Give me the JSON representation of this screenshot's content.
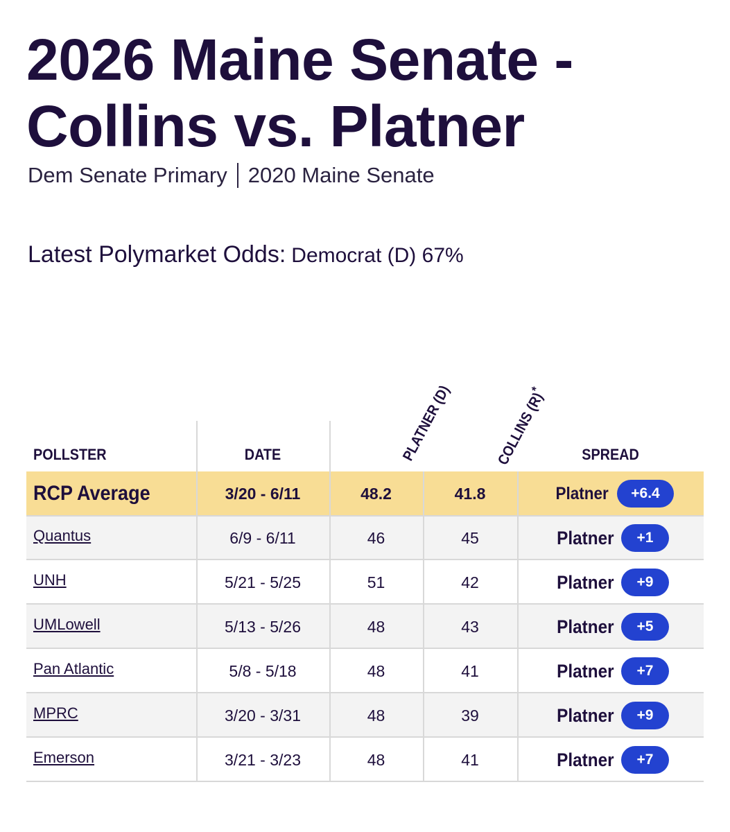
{
  "header": {
    "title": "2026 Maine Senate - Collins vs. Platner",
    "links": [
      "Dem Senate Primary",
      "2020 Maine Senate"
    ]
  },
  "odds": {
    "label": "Latest Polymarket Odds:",
    "value": "Democrat (D) 67%"
  },
  "table": {
    "columns": [
      "POLLSTER",
      "DATE",
      "PLATNER (D)",
      "COLLINS (R)",
      "SPREAD"
    ],
    "collins_note": "*",
    "average": {
      "pollster": "RCP Average",
      "date": "3/20 - 6/11",
      "platner": 48.2,
      "collins": 41.8,
      "leader": "Platner",
      "margin": "+6.4"
    },
    "rows": [
      {
        "pollster": "Quantus",
        "date": "6/9 - 6/11",
        "platner": 46,
        "collins": 45,
        "leader": "Platner",
        "margin": "+1"
      },
      {
        "pollster": "UNH",
        "date": "5/21 - 5/25",
        "platner": 51,
        "collins": 42,
        "leader": "Platner",
        "margin": "+9"
      },
      {
        "pollster": "UMLowell",
        "date": "5/13 - 5/26",
        "platner": 48,
        "collins": 43,
        "leader": "Platner",
        "margin": "+5"
      },
      {
        "pollster": "Pan Atlantic",
        "date": "5/8 - 5/18",
        "platner": 48,
        "collins": 41,
        "leader": "Platner",
        "margin": "+7"
      },
      {
        "pollster": "MPRC",
        "date": "3/20 - 3/31",
        "platner": 48,
        "collins": 39,
        "leader": "Platner",
        "margin": "+9"
      },
      {
        "pollster": "Emerson",
        "date": "3/21 - 3/23",
        "platner": 48,
        "collins": 41,
        "leader": "Platner",
        "margin": "+7"
      }
    ]
  }
}
